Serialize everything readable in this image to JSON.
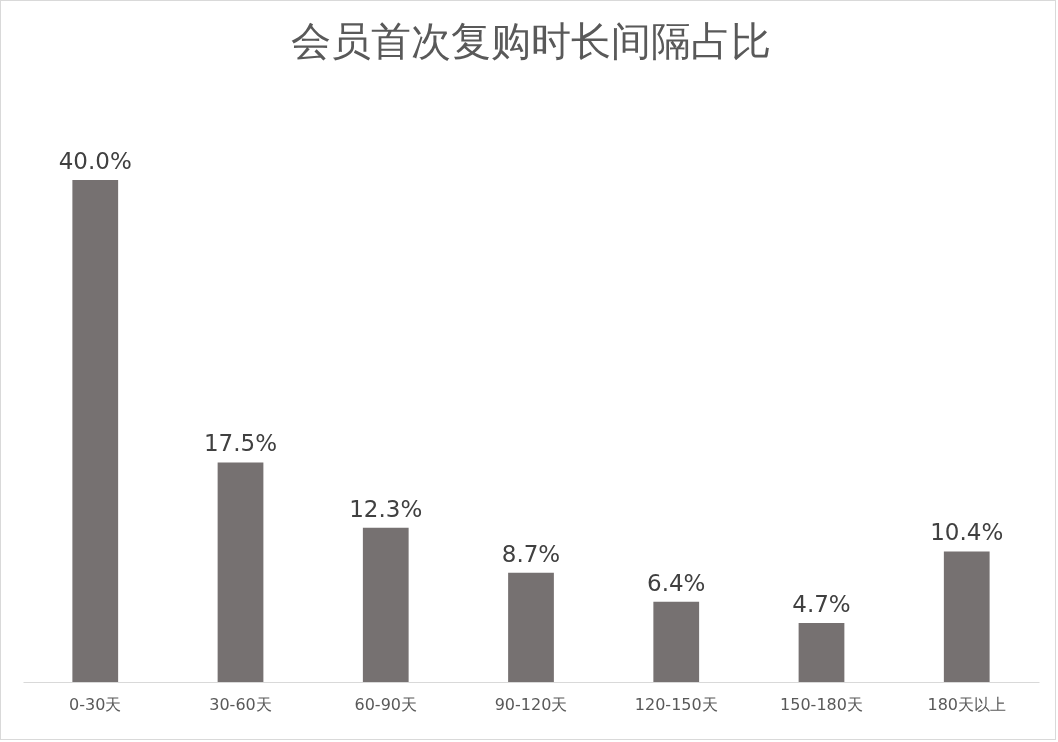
{
  "chart_data": {
    "type": "bar",
    "title": "会员首次复购时长间隔占比",
    "categories": [
      "0-30天",
      "30-60天",
      "60-90天",
      "90-120天",
      "120-150天",
      "150-180天",
      "180天以上"
    ],
    "values": [
      40.0,
      17.5,
      12.3,
      8.7,
      6.4,
      4.7,
      10.4
    ],
    "value_labels": [
      "40.0%",
      "17.5%",
      "12.3%",
      "8.7%",
      "6.4%",
      "4.7%",
      "10.4%"
    ],
    "color": "#767171",
    "tick_labels": "x"
  }
}
